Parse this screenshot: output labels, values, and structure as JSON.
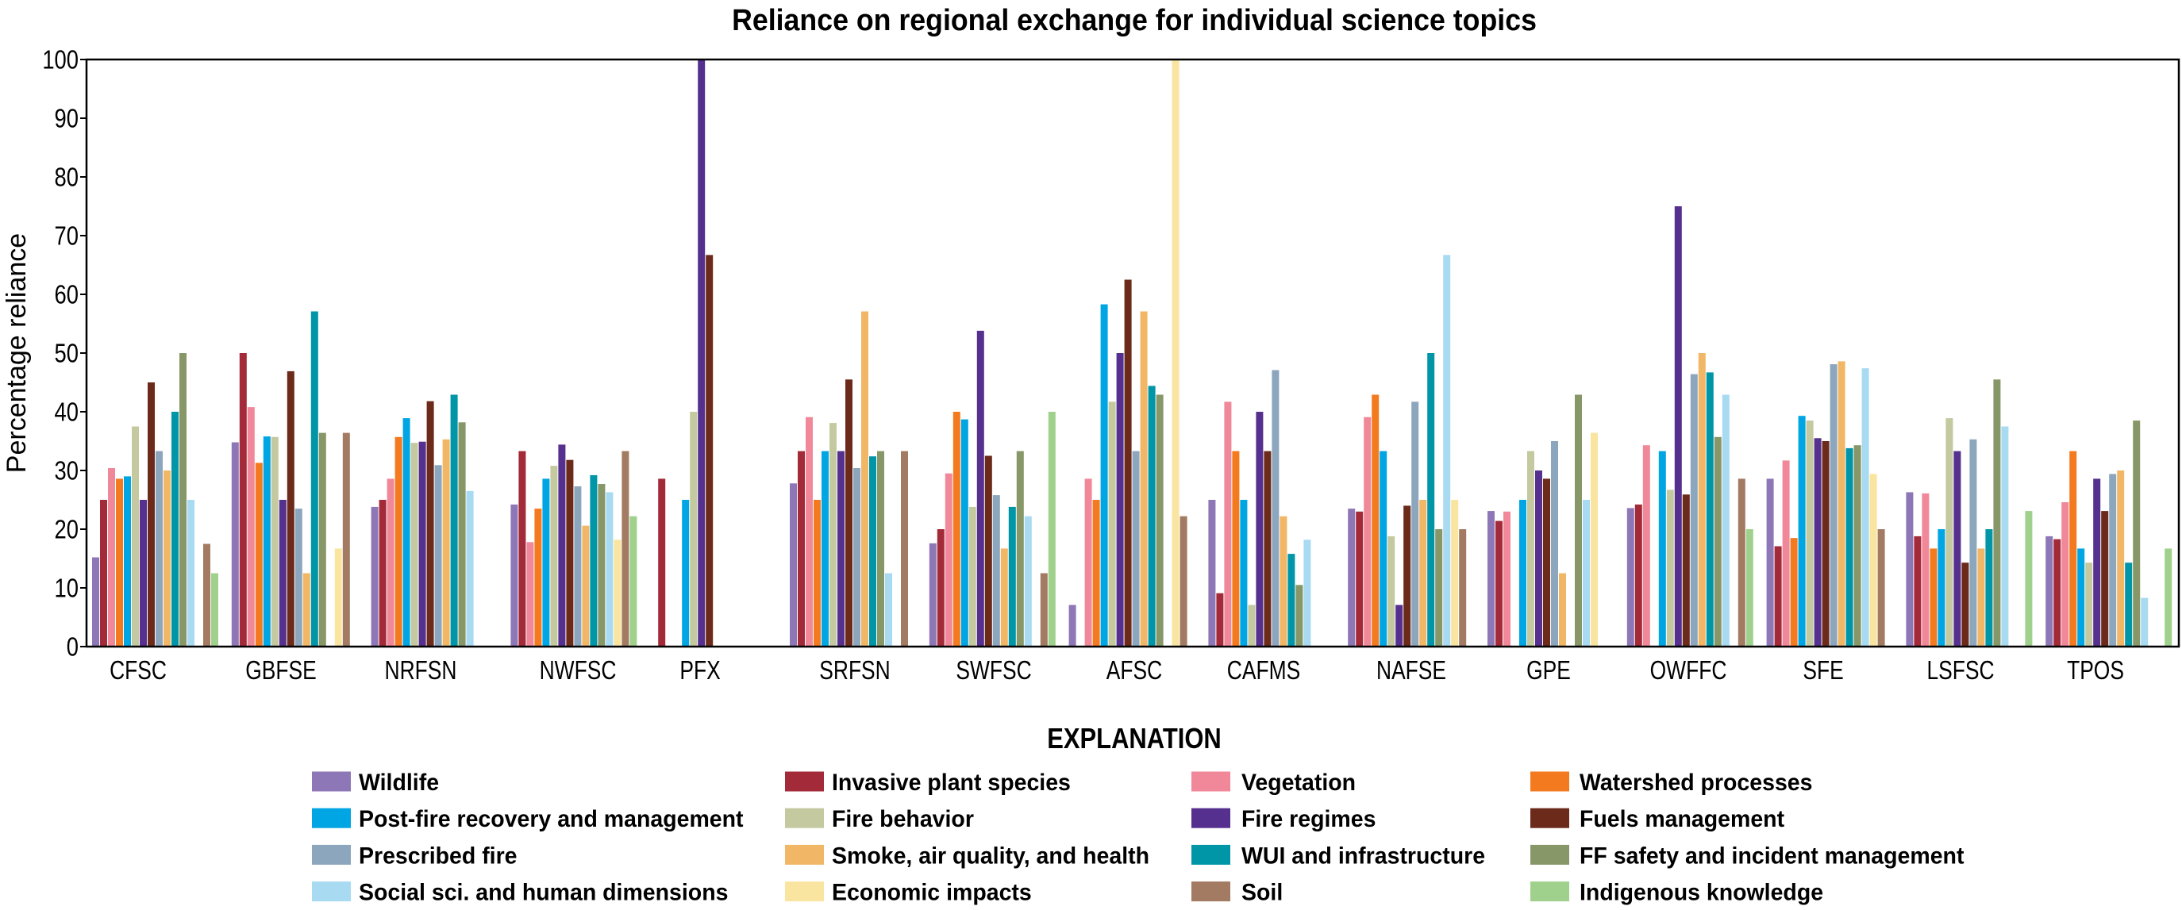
{
  "chart_data": {
    "type": "bar",
    "title": "Reliance on regional exchange for individual science topics",
    "xlabel": "",
    "ylabel": "Percentage reliance",
    "ylim": [
      0,
      100
    ],
    "yticks": [
      0,
      10,
      20,
      30,
      40,
      50,
      60,
      70,
      80,
      90,
      100
    ],
    "grid": false,
    "legend_position": "bottom",
    "categories": [
      "CFSC",
      "GBFSE",
      "NRFSN",
      "NWFSC",
      "PFX",
      "SRFSN",
      "SWFSC",
      "AFSC",
      "CAFMS",
      "NAFSE",
      "GPE",
      "OWFFC",
      "SFE",
      "LSFSC",
      "TPOS"
    ],
    "series": [
      {
        "name": "Wildlife",
        "color": "#8e77b6",
        "values": [
          15.2,
          34.8,
          23.8,
          24.2,
          0,
          27.8,
          17.6,
          7.1,
          25,
          23.5,
          23.1,
          23.6,
          28.6,
          26.3,
          18.8
        ]
      },
      {
        "name": "Invasive plant species",
        "color": "#a32a38",
        "values": [
          25,
          50,
          25,
          33.3,
          28.6,
          33.3,
          20,
          0,
          9.1,
          23,
          21.4,
          24.2,
          17.1,
          18.8,
          18.3
        ]
      },
      {
        "name": "Vegetation",
        "color": "#f0889a",
        "values": [
          30.4,
          40.8,
          28.6,
          17.8,
          0,
          39.1,
          29.5,
          28.6,
          41.7,
          39.1,
          23,
          34.3,
          31.7,
          26.1,
          24.6
        ]
      },
      {
        "name": "Watershed processes",
        "color": "#f47a20",
        "values": [
          28.6,
          31.3,
          35.7,
          23.5,
          0,
          25,
          40,
          25,
          33.3,
          42.9,
          0,
          0,
          18.5,
          16.7,
          33.3
        ]
      },
      {
        "name": "Post-fire recovery and management",
        "color": "#00a5e3",
        "values": [
          29,
          35.8,
          38.9,
          28.6,
          25,
          33.3,
          38.7,
          58.3,
          25,
          33.3,
          25,
          33.3,
          39.3,
          20,
          16.7
        ]
      },
      {
        "name": "Fire behavior",
        "color": "#c4c9a0",
        "values": [
          37.5,
          35.7,
          34.7,
          30.8,
          40,
          38.1,
          23.8,
          41.7,
          7.1,
          18.8,
          33.3,
          26.7,
          38.5,
          38.9,
          14.3
        ]
      },
      {
        "name": "Fire regimes",
        "color": "#55308e",
        "values": [
          25,
          25,
          34.9,
          34.4,
          100,
          33.3,
          53.8,
          50,
          40,
          7.1,
          30,
          75,
          35.5,
          33.3,
          28.6
        ]
      },
      {
        "name": "Fuels management",
        "color": "#6b2a1a",
        "values": [
          45,
          46.9,
          41.8,
          31.8,
          66.7,
          45.5,
          32.5,
          62.5,
          33.3,
          24,
          28.6,
          25.9,
          35,
          14.3,
          23.1
        ]
      },
      {
        "name": "Prescribed fire",
        "color": "#8ca6be",
        "values": [
          33.3,
          23.5,
          30.9,
          27.3,
          0,
          30.4,
          25.8,
          33.3,
          47.1,
          41.7,
          35,
          46.4,
          48.1,
          35.3,
          29.4
        ]
      },
      {
        "name": "Smoke, air quality, and health",
        "color": "#f1b766",
        "values": [
          30,
          12.5,
          35.3,
          20.6,
          0,
          57.1,
          16.7,
          57.1,
          22.2,
          25,
          12.5,
          50,
          48.6,
          16.7,
          30
        ]
      },
      {
        "name": "WUI and infrastructure",
        "color": "#0096a8",
        "values": [
          40,
          57.1,
          42.9,
          29.2,
          0,
          32.4,
          23.8,
          44.4,
          15.8,
          50,
          0,
          46.7,
          33.8,
          20,
          14.3
        ]
      },
      {
        "name": "FF safety and incident management",
        "color": "#879767",
        "values": [
          50,
          36.4,
          38.2,
          27.7,
          0,
          33.3,
          33.3,
          42.9,
          10.5,
          20,
          42.9,
          35.7,
          34.3,
          45.5,
          38.5
        ]
      },
      {
        "name": "Social sci. and human dimensions",
        "color": "#a8daf2",
        "values": [
          25,
          0,
          26.5,
          26.3,
          0,
          12.5,
          22.2,
          0,
          18.2,
          66.7,
          25,
          42.9,
          47.4,
          37.5,
          8.3
        ]
      },
      {
        "name": "Economic impacts",
        "color": "#f9e5a0",
        "values": [
          0,
          16.7,
          0,
          18.2,
          0,
          0,
          0,
          100,
          0,
          25,
          36.4,
          0,
          29.4,
          0,
          0
        ]
      },
      {
        "name": "Soil",
        "color": "#a37a62",
        "values": [
          17.5,
          36.4,
          0,
          33.3,
          0,
          33.3,
          12.5,
          22.2,
          0,
          20,
          0,
          28.6,
          20,
          0,
          0
        ]
      },
      {
        "name": "Indigenous knowledge",
        "color": "#a0d18c",
        "values": [
          12.5,
          0,
          0,
          22.2,
          0,
          0,
          40,
          0,
          0,
          0,
          0,
          20,
          0,
          23.1,
          16.7
        ]
      }
    ]
  },
  "legend": {
    "title": "EXPLANATION"
  }
}
